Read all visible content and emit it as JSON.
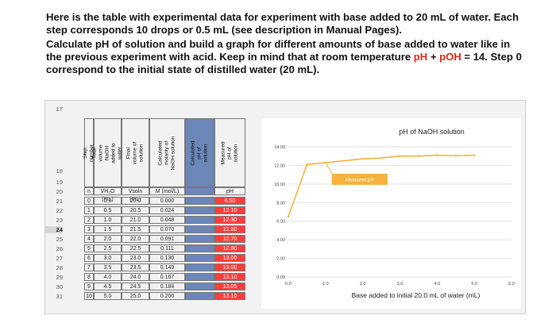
{
  "intro": {
    "line1": "Here is the table with experimental data for experiment with base added to 20 mL of water. Each step corresponds 10 drops or 0.5 mL (see description in Manual Pages).",
    "line2a": "Calculate pH of solution and build a graph for different amounts of base added to water like in the previous experiment with acid. Keep in mind that at room temperature ",
    "ph": "pH",
    "plus": " + ",
    "poh": "pOH",
    "line2b": " = 14. Step 0 correspond to the initial state of distilled water (20 mL)."
  },
  "sheet": {
    "row_numbers": [
      "17",
      "18",
      "19",
      "20",
      "21",
      "22",
      "23",
      "24",
      "25",
      "26",
      "27",
      "28",
      "29",
      "30",
      "31"
    ],
    "selected_row": "24",
    "headers": [
      "Step number",
      "Total volume NaOH added to water",
      "Final volume of solution",
      "Calculated molarity of NaOH solution",
      "Calculated pH of solution",
      "Measured pH of solution"
    ],
    "units": [
      "n",
      "VH₂O (mL)",
      "Vsoln (mL)",
      "M (mol/L)",
      "",
      "pH"
    ],
    "rows": [
      [
        "0",
        "0.0",
        "20.0",
        "0.000",
        "",
        "6.50"
      ],
      [
        "1",
        "0.5",
        "20.5",
        "0.024",
        "",
        "12.10"
      ],
      [
        "2",
        "1.0",
        "21.0",
        "0.048",
        "",
        "12.30"
      ],
      [
        "3",
        "1.5",
        "21.5",
        "0.070",
        "",
        "12.50"
      ],
      [
        "4",
        "2.0",
        "22.0",
        "0.091",
        "",
        "12.70"
      ],
      [
        "5",
        "2.5",
        "22.5",
        "0.111",
        "",
        "12.80"
      ],
      [
        "6",
        "3.0",
        "23.0",
        "0.130",
        "",
        "13.00"
      ],
      [
        "7",
        "3.5",
        "23.5",
        "0.149",
        "",
        "13.00"
      ],
      [
        "8",
        "4.0",
        "24.0",
        "0.167",
        "",
        "13.10"
      ],
      [
        "9",
        "4.5",
        "24.5",
        "0.184",
        "",
        "13.05"
      ],
      [
        "10",
        "5.0",
        "25.0",
        "0.200",
        "",
        "13.10"
      ]
    ]
  },
  "colors": {
    "red": "#e1261c",
    "cell_highlight": "#ff3d3d",
    "line": "#f5b23f",
    "calc_col": "#6b86b8"
  },
  "chart_data": {
    "type": "line",
    "title": "pH of NaOH solution",
    "xlabel": "Base added to initial 20.0 mL of water (mL)",
    "ylabel": "",
    "xlim": [
      0,
      6
    ],
    "ylim": [
      0,
      14
    ],
    "x_ticks": [
      "0.0",
      "1.0",
      "2.0",
      "3.0",
      "4.0",
      "5.0",
      "6.0"
    ],
    "y_ticks": [
      "0.00",
      "2.00",
      "4.00",
      "6.00",
      "8.00",
      "10.00",
      "12.00",
      "14.00"
    ],
    "grid": true,
    "series": [
      {
        "name": "Measured pH",
        "x": [
          0,
          0.5,
          1,
          1.5,
          2,
          2.5,
          3,
          3.5,
          4,
          4.5,
          5
        ],
        "values": [
          6.5,
          12.1,
          12.3,
          12.5,
          12.7,
          12.8,
          13.0,
          13.0,
          13.1,
          13.05,
          13.1
        ]
      }
    ],
    "annotation": "Measured pH"
  }
}
